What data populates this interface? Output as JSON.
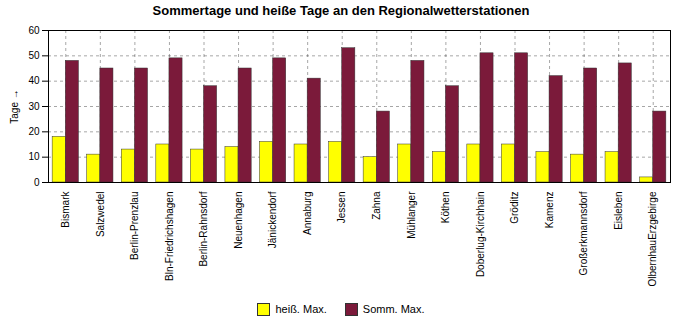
{
  "chart_data": {
    "type": "bar",
    "title": "Sommertage und heiße Tage an den Regionalwetterstationen",
    "ylabel": "Tage",
    "categories": [
      "Bismark",
      "Salzwedel",
      "Berlin-Prenzlau",
      "Bln-Friedrichshagen",
      "Berlin-Rahnsdorf",
      "Neuenhagen",
      "Jänickendorf",
      "Annaburg",
      "Jessen",
      "Zahna",
      "Mühlanger",
      "Köthen",
      "Doberlug-Kirchhain",
      "Gröditz",
      "Kamenz",
      "Großerkmannsdorf",
      "Eisleben",
      "OlbernhauErzgebirge"
    ],
    "series": [
      {
        "name": "heiß. Max.",
        "color": "#FFFF00",
        "values": [
          18,
          11,
          13,
          15,
          13,
          14,
          16,
          15,
          16,
          10,
          15,
          12,
          15,
          15,
          12,
          11,
          12,
          2
        ]
      },
      {
        "name": "Somm. Max.",
        "color": "#7B1A3A",
        "values": [
          48,
          45,
          45,
          49,
          38,
          45,
          49,
          41,
          53,
          28,
          48,
          38,
          51,
          51,
          42,
          45,
          47,
          28
        ]
      }
    ],
    "ylim": [
      0,
      60
    ],
    "yticks": [
      0,
      10,
      20,
      30,
      40,
      50,
      60
    ],
    "grid": true,
    "legend": "bottom"
  }
}
